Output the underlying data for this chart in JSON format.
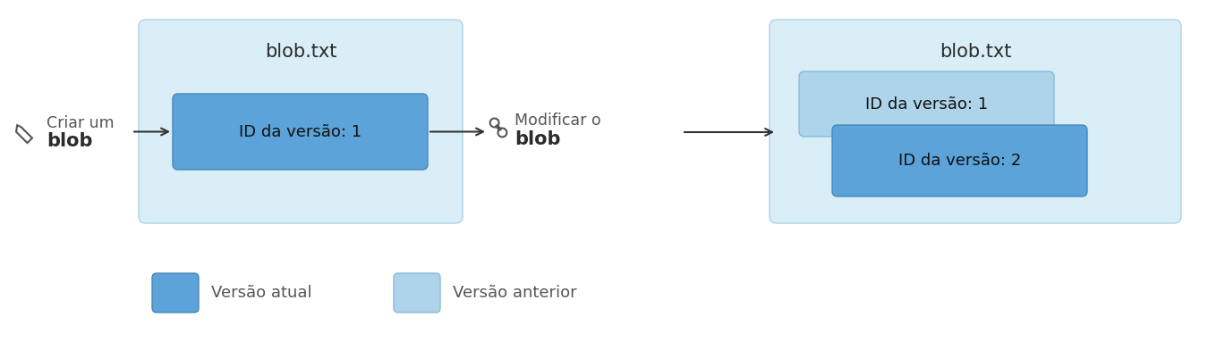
{
  "bg_color": "#ffffff",
  "container_color": "#daeef8",
  "container_edge": "#b8d8e8",
  "medium_blue_box": "#5ba3d9",
  "light_blue_box": "#aed4ea",
  "text_color": "#2b2b2b",
  "gray_text": "#555555",
  "title_text": "blob.txt",
  "version1_label": "ID da versão: 1",
  "version2_label": "ID da versão: 2",
  "step1_line1": "Criar um",
  "step1_line2": "blob",
  "step2_line1": "Modificar o",
  "step2_line2": "blob",
  "legend_current": "Versão atual",
  "legend_previous": "Versão anterior",
  "fig_width": 13.5,
  "fig_height": 3.92,
  "dpi": 100
}
